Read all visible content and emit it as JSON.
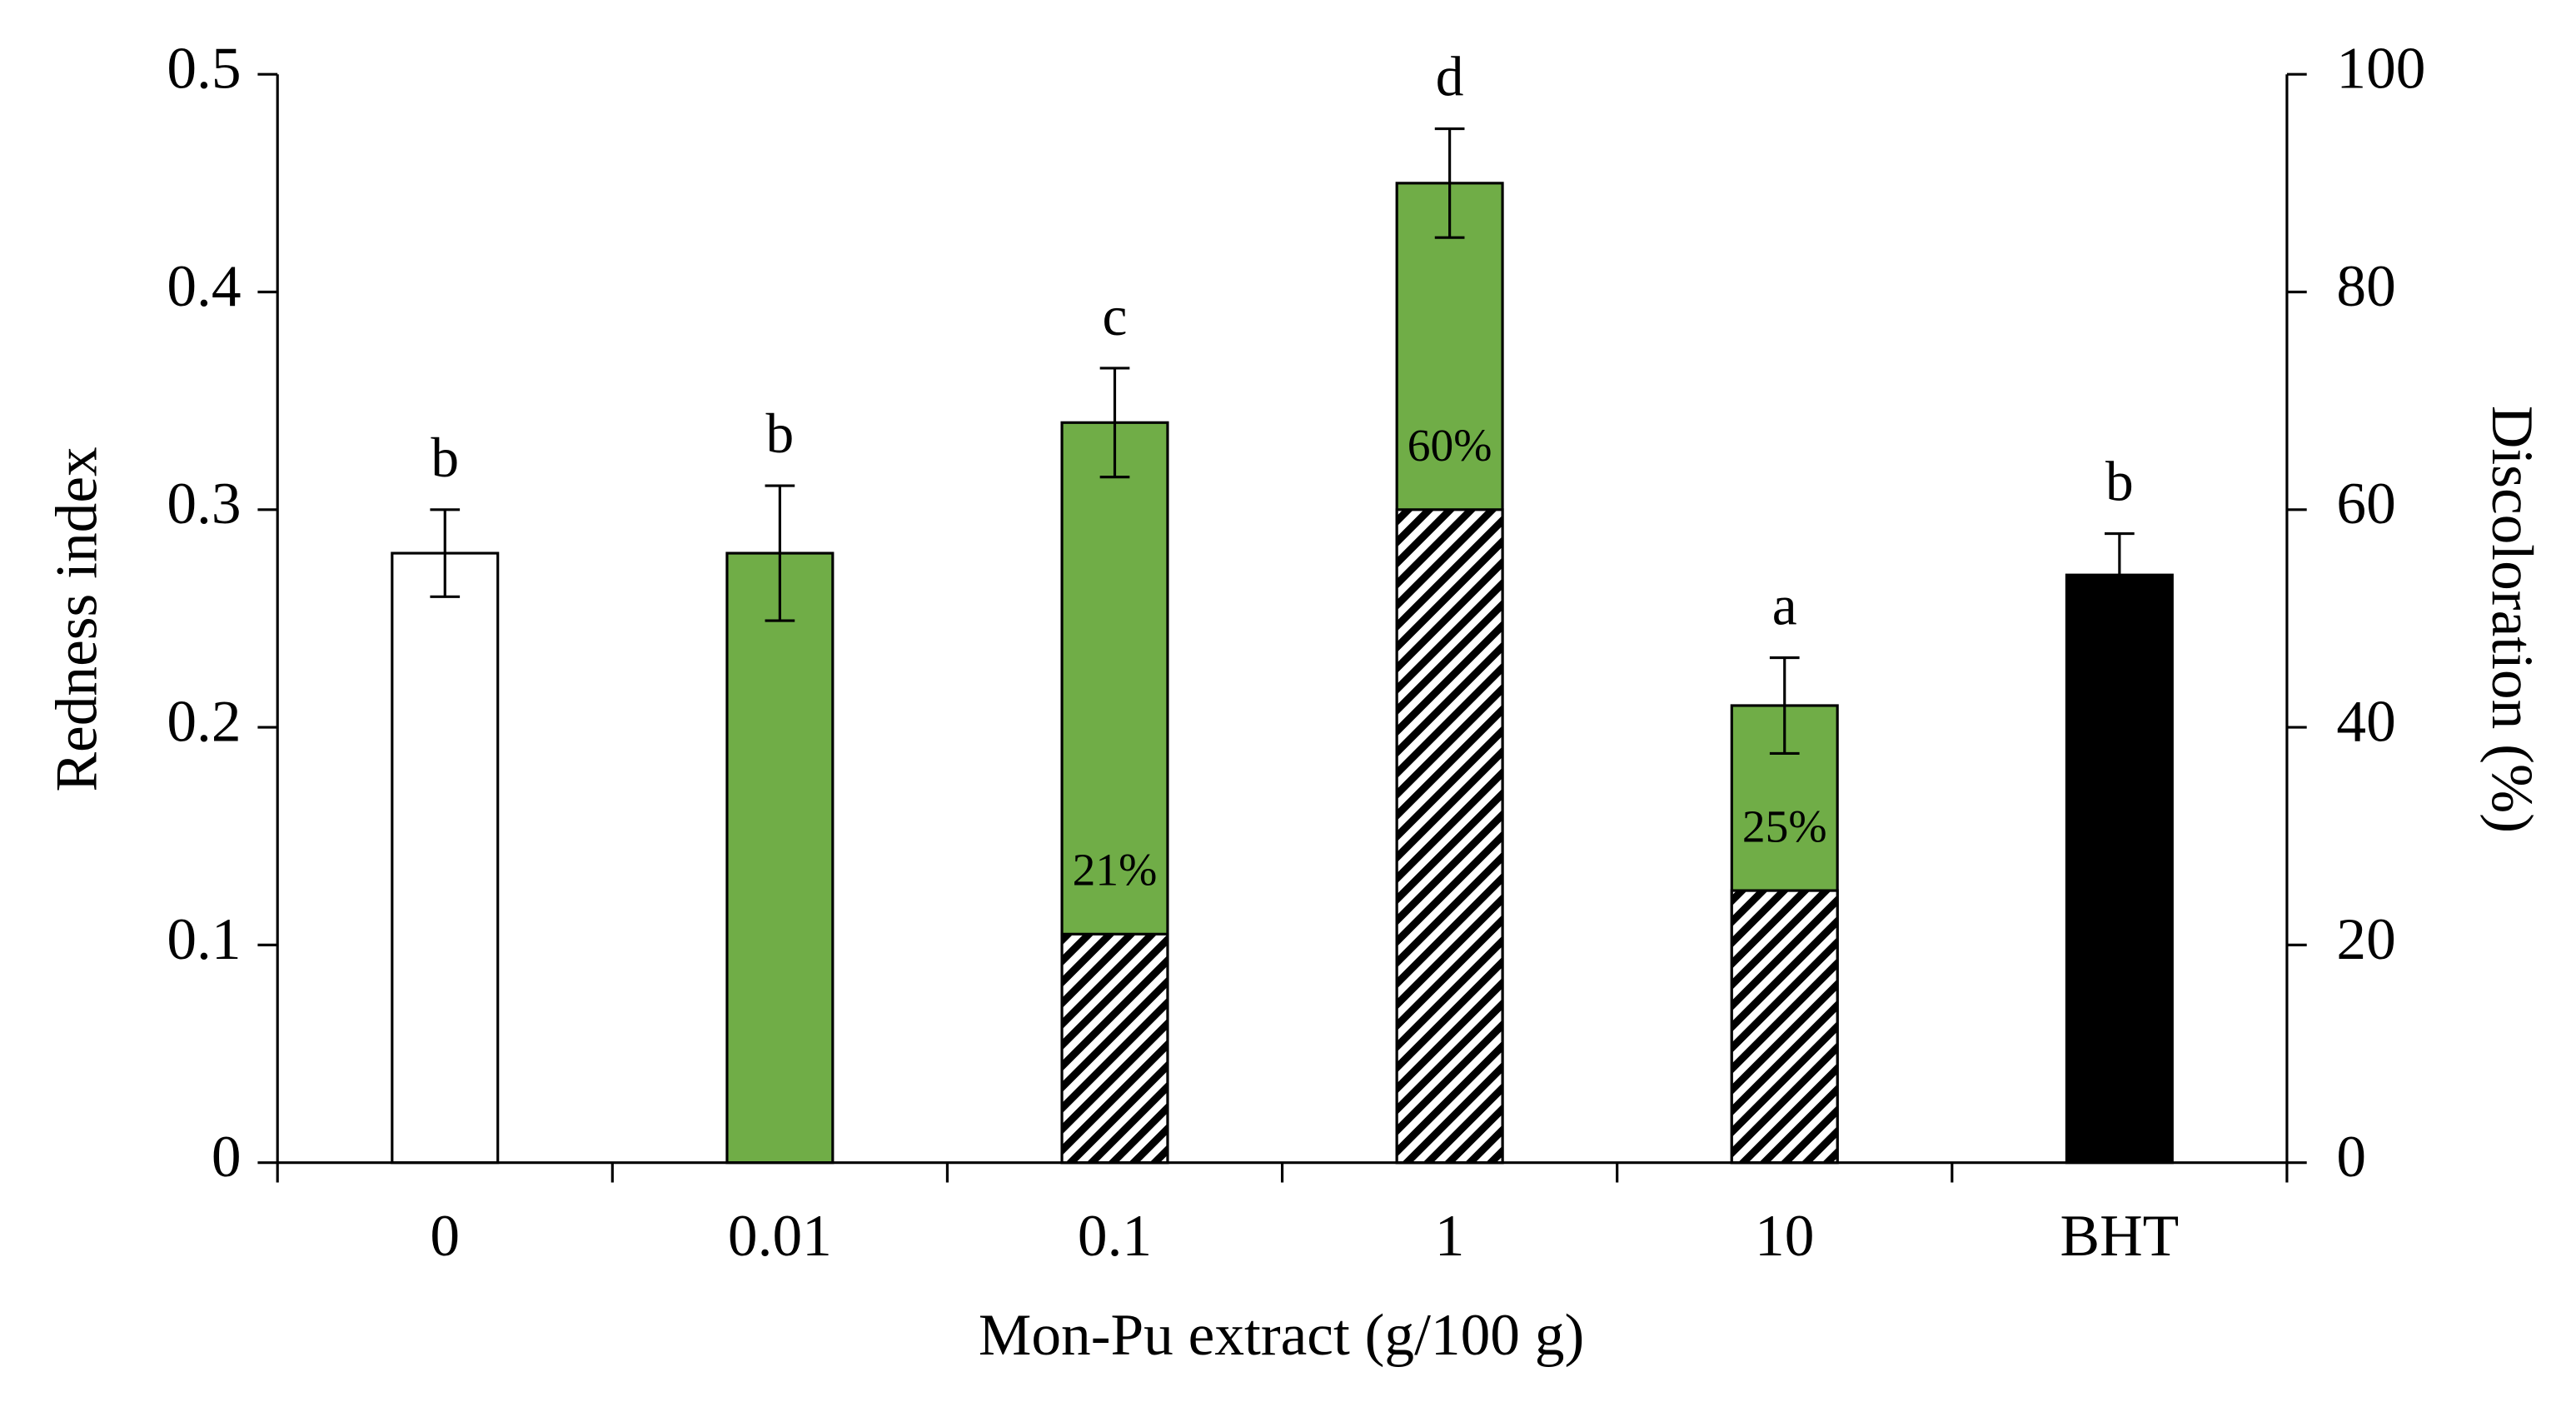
{
  "chart_data": {
    "type": "bar",
    "xlabel": "Mon-Pu extract (g/100 g)",
    "ylabel": "Redness index",
    "y2label": "Discoloration (%)",
    "categories": [
      "0",
      "0.01",
      "0.1",
      "1",
      "10",
      "BHT"
    ],
    "series": [
      {
        "values": [
          0.28,
          0.28,
          0.34,
          0.45,
          0.21,
          0.27
        ],
        "errors": [
          0.02,
          0.031,
          0.025,
          0.025,
          0.022,
          0.019
        ],
        "colors": [
          "#ffffff",
          "#70ad47",
          "#70ad47",
          "#70ad47",
          "#70ad47",
          "#000000"
        ],
        "annotations": [
          "b",
          "b",
          "c",
          "d",
          "a",
          "b"
        ]
      },
      {
        "axis": "y2",
        "pattern": "hatch",
        "values": [
          null,
          null,
          21,
          60,
          25,
          null
        ],
        "value_labels": [
          null,
          null,
          "21%",
          "60%",
          "25%",
          null
        ]
      }
    ],
    "ylim": [
      0,
      0.5
    ],
    "yticks": [
      0,
      0.1,
      0.2,
      0.3,
      0.4,
      0.5
    ],
    "y2lim": [
      0,
      100
    ],
    "y2ticks": [
      0,
      20,
      40,
      60,
      80,
      100
    ],
    "grid": false
  }
}
